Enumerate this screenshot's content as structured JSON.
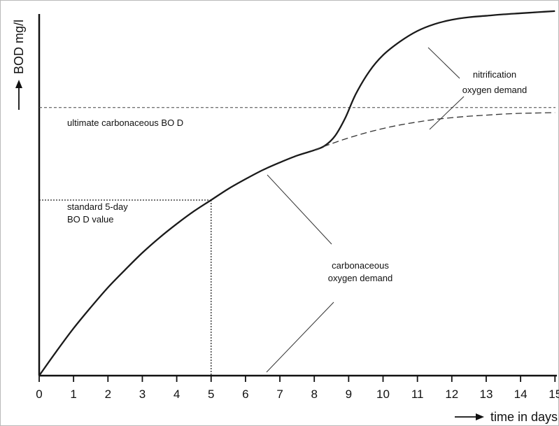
{
  "chart_data": {
    "type": "line",
    "title": "",
    "xlabel": "time in days",
    "ylabel": "BOD mg/l",
    "xlim": [
      0,
      15
    ],
    "ylim": [
      0,
      100
    ],
    "x_ticks": [
      "0",
      "1",
      "2",
      "3",
      "4",
      "5",
      "6",
      "7",
      "8",
      "9",
      "10",
      "11",
      "12",
      "13",
      "14",
      "15"
    ],
    "grid": false,
    "legend": "none",
    "series": [
      {
        "style": "solid",
        "x": [
          0,
          0.5,
          1,
          1.5,
          2,
          2.5,
          3,
          3.5,
          4,
          4.5,
          5,
          5.5,
          6,
          6.5,
          7,
          7.5,
          8,
          8.3,
          8.6,
          8.9,
          9.2,
          9.6,
          10,
          10.5,
          11,
          11.5,
          12,
          12.5,
          13,
          13.5,
          14,
          14.5,
          15
        ],
        "y": [
          0,
          6.7,
          13.1,
          18.9,
          24.4,
          29.3,
          34.0,
          38.2,
          42.0,
          45.5,
          48.6,
          51.7,
          54.4,
          56.9,
          59.0,
          60.9,
          62.4,
          63.6,
          66.3,
          71.3,
          77.8,
          84.2,
          88.7,
          92.5,
          95.4,
          97.3,
          98.5,
          99.2,
          99.6,
          100.0,
          100.3,
          100.6,
          100.9
        ]
      },
      {
        "style": "dashed",
        "x": [
          8,
          8.5,
          9,
          9.5,
          10,
          10.5,
          11,
          11.5,
          12,
          12.5,
          13,
          13.5,
          14,
          14.5,
          15
        ],
        "y": [
          62.4,
          64.2,
          65.8,
          67.2,
          68.4,
          69.4,
          70.2,
          70.9,
          71.4,
          71.8,
          72.1,
          72.4,
          72.6,
          72.7,
          72.8
        ]
      }
    ],
    "reference_lines": [
      {
        "kind": "horizontal",
        "y": 74.2,
        "style": "dashed",
        "label": "ultimate carbonaceous BO D"
      },
      {
        "kind": "horizontal",
        "y": 48.6,
        "x_to": 5,
        "style": "dotted",
        "label_lines": [
          "standard 5-day",
          "BO D value"
        ]
      },
      {
        "kind": "vertical",
        "x": 5,
        "y_to": 48.6,
        "style": "dotted"
      }
    ],
    "annotations": [
      {
        "lines": [
          "nitrification",
          "oxygen demand"
        ]
      },
      {
        "lines": [
          "carbonaceous",
          "oxygen demand"
        ]
      }
    ],
    "colors": {
      "line": "#1a1a1a",
      "axis": "#111111",
      "frame": "#b9b9b9"
    }
  }
}
